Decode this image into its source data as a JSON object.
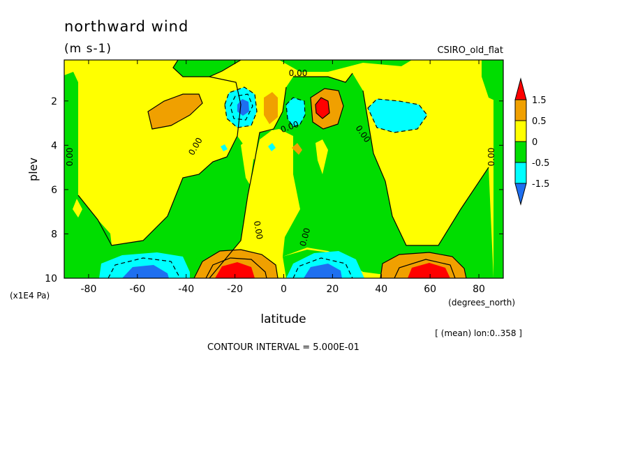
{
  "colors": {
    "dark_blue": "#1e6ff0",
    "cyan": "#00ffff",
    "green": "#00dd00",
    "yellow": "#ffff00",
    "orange": "#f0a000",
    "red": "#ff0000"
  },
  "chart_data": {
    "type": "heatmap",
    "title": "northward wind",
    "units": "(m s-1)",
    "model_label": "CSIRO_old_flat",
    "xlabel": "latitude",
    "x_units": "(degrees_north)",
    "ylabel": "plev",
    "y_units": "(x1E4 Pa)",
    "xlim": [
      -90,
      90
    ],
    "ylim": [
      10,
      0.15
    ],
    "xticks": [
      "-80",
      "-60",
      "-40",
      "-20",
      "0",
      "20",
      "40",
      "60",
      "80"
    ],
    "yticks": [
      "2",
      "4",
      "6",
      "8",
      "10"
    ],
    "averaging_note": "[ (mean) lon:0..358 ]",
    "contour_interval": "CONTOUR INTERVAL = 5.000E-01",
    "zero_contour_label": "0.00",
    "colorbar": {
      "levels": [
        "1.5",
        "0.5",
        "0",
        "-0.5",
        "-1.5"
      ],
      "bins": [
        {
          "range": "> 1.5",
          "color": "red"
        },
        {
          "range": "0.5 to 1.5",
          "color": "orange"
        },
        {
          "range": "0 to 0.5",
          "color": "yellow"
        },
        {
          "range": "-0.5 to 0",
          "color": "green"
        },
        {
          "range": "-1.5 to -0.5",
          "color": "cyan"
        },
        {
          "range": "< -1.5",
          "color": "dark_blue"
        }
      ]
    },
    "features": [
      {
        "lat": -60,
        "plev": 9.8,
        "value": -1.8
      },
      {
        "lat": -20,
        "plev": 9.8,
        "value": 1.8
      },
      {
        "lat": 20,
        "plev": 9.8,
        "value": -1.8
      },
      {
        "lat": 60,
        "plev": 9.8,
        "value": 1.8
      },
      {
        "lat": -15,
        "plev": 2.2,
        "value": -1.6
      },
      {
        "lat": 15,
        "plev": 2.2,
        "value": 1.6
      },
      {
        "lat": -50,
        "plev": 2.4,
        "value": 0.7
      },
      {
        "lat": 50,
        "plev": 2.3,
        "value": -0.7
      },
      {
        "lat": -5,
        "plev": 2.2,
        "value": 0.6
      },
      {
        "lat": 5,
        "plev": 2.3,
        "value": -0.6
      }
    ]
  }
}
